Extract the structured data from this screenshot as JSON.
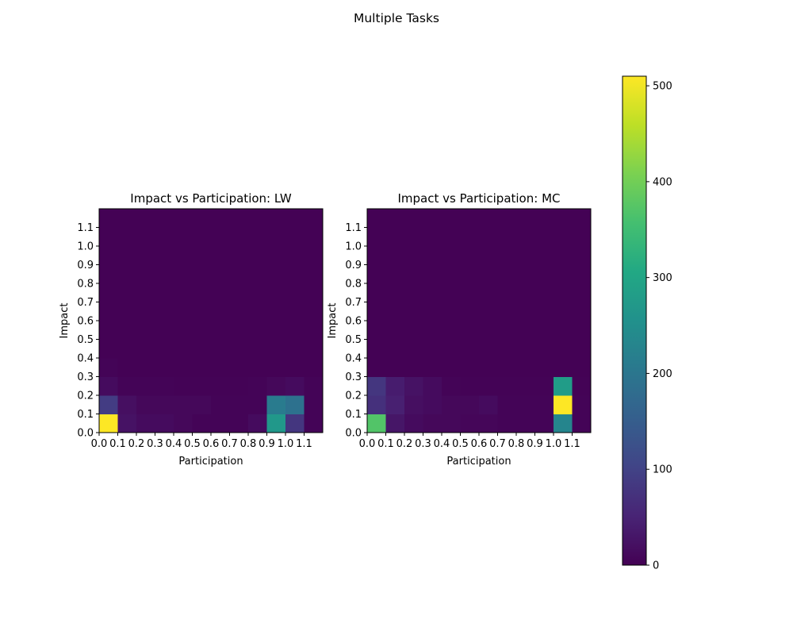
{
  "suptitle": "Multiple Tasks",
  "colormap": "viridis",
  "colorbar": {
    "vmin": 0,
    "vmax": 510,
    "ticks": [
      0,
      100,
      200,
      300,
      400,
      500
    ],
    "tick_labels": [
      "0",
      "100",
      "200",
      "300",
      "400",
      "500"
    ]
  },
  "chart_data": [
    {
      "type": "heatmap",
      "title": "Impact vs Participation: LW",
      "xlabel": "Participation",
      "ylabel": "Impact",
      "x_range": [
        0,
        1.2
      ],
      "y_range": [
        0,
        1.2
      ],
      "bin_width": 0.1,
      "x_ticks": [
        "0.0",
        "0.1",
        "0.2",
        "0.3",
        "0.4",
        "0.5",
        "0.6",
        "0.7",
        "0.8",
        "0.9",
        "1.0",
        "1.1"
      ],
      "y_ticks": [
        "0.0",
        "0.1",
        "0.2",
        "0.3",
        "0.4",
        "0.5",
        "0.6",
        "0.7",
        "0.8",
        "0.9",
        "1.0",
        "1.1"
      ],
      "note_rows": "rows ordered from Impact bin 0.0-0.1 upward; columns ordered from Participation bin 0.0-0.1 rightward",
      "values": [
        [
          510,
          25,
          15,
          15,
          10,
          5,
          5,
          5,
          15,
          270,
          80,
          5
        ],
        [
          90,
          20,
          10,
          10,
          10,
          10,
          5,
          5,
          5,
          210,
          190,
          5
        ],
        [
          15,
          5,
          5,
          5,
          3,
          3,
          3,
          3,
          5,
          10,
          15,
          5
        ],
        [
          5,
          2,
          2,
          2,
          2,
          2,
          2,
          2,
          2,
          2,
          2,
          2
        ],
        [
          2,
          2,
          2,
          2,
          2,
          2,
          2,
          2,
          2,
          2,
          2,
          2
        ],
        [
          2,
          2,
          2,
          2,
          2,
          2,
          2,
          2,
          2,
          2,
          2,
          2
        ],
        [
          2,
          2,
          2,
          2,
          2,
          2,
          2,
          2,
          2,
          2,
          2,
          2
        ],
        [
          2,
          2,
          2,
          2,
          2,
          2,
          2,
          2,
          2,
          2,
          2,
          2
        ],
        [
          2,
          2,
          2,
          2,
          2,
          2,
          2,
          2,
          2,
          2,
          2,
          2
        ],
        [
          2,
          2,
          2,
          2,
          2,
          2,
          2,
          2,
          2,
          2,
          2,
          2
        ],
        [
          2,
          2,
          2,
          2,
          2,
          2,
          2,
          2,
          2,
          2,
          2,
          2
        ],
        [
          2,
          2,
          2,
          2,
          2,
          2,
          2,
          2,
          2,
          2,
          2,
          2
        ]
      ]
    },
    {
      "type": "heatmap",
      "title": "Impact vs Participation: MC",
      "xlabel": "Participation",
      "ylabel": "Impact",
      "x_range": [
        0,
        1.2
      ],
      "y_range": [
        0,
        1.2
      ],
      "bin_width": 0.1,
      "x_ticks": [
        "0.0",
        "0.1",
        "0.2",
        "0.3",
        "0.4",
        "0.5",
        "0.6",
        "0.7",
        "0.8",
        "0.9",
        "1.0",
        "1.1"
      ],
      "y_ticks": [
        "0.0",
        "0.1",
        "0.2",
        "0.3",
        "0.4",
        "0.5",
        "0.6",
        "0.7",
        "0.8",
        "0.9",
        "1.0",
        "1.1"
      ],
      "note_rows": "rows ordered from Impact bin 0.0-0.1 upward; columns ordered from Participation bin 0.0-0.1 rightward",
      "values": [
        [
          370,
          30,
          15,
          10,
          10,
          8,
          8,
          5,
          5,
          5,
          230,
          5
        ],
        [
          70,
          45,
          20,
          15,
          10,
          10,
          15,
          5,
          5,
          5,
          510,
          5
        ],
        [
          80,
          40,
          25,
          15,
          5,
          3,
          3,
          3,
          3,
          3,
          280,
          3
        ],
        [
          2,
          2,
          2,
          2,
          2,
          2,
          2,
          2,
          2,
          2,
          2,
          2
        ],
        [
          2,
          2,
          2,
          2,
          2,
          2,
          2,
          2,
          2,
          2,
          2,
          2
        ],
        [
          2,
          2,
          2,
          2,
          2,
          2,
          2,
          2,
          2,
          2,
          2,
          2
        ],
        [
          2,
          2,
          2,
          2,
          2,
          2,
          2,
          2,
          2,
          2,
          2,
          2
        ],
        [
          2,
          2,
          2,
          2,
          2,
          2,
          2,
          2,
          2,
          2,
          2,
          2
        ],
        [
          2,
          2,
          2,
          2,
          2,
          2,
          2,
          2,
          2,
          2,
          2,
          2
        ],
        [
          2,
          2,
          2,
          2,
          2,
          2,
          2,
          2,
          2,
          2,
          2,
          2
        ],
        [
          2,
          2,
          2,
          2,
          2,
          2,
          2,
          2,
          2,
          2,
          2,
          2
        ],
        [
          2,
          2,
          2,
          2,
          2,
          2,
          2,
          2,
          2,
          2,
          2,
          2
        ]
      ]
    }
  ]
}
